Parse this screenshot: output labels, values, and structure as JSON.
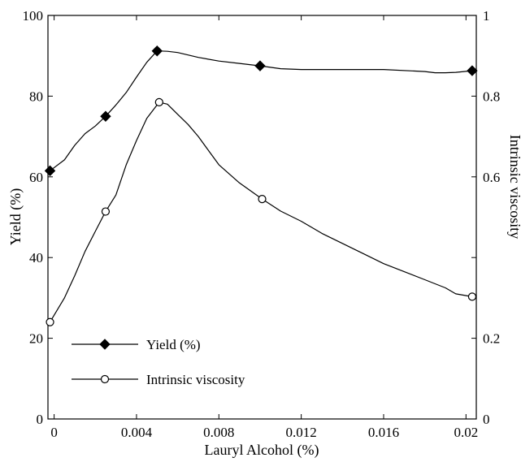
{
  "chart_data": {
    "type": "line",
    "xlabel": "Lauryl Alcohol (%)",
    "ylabel": "Yield (%)",
    "y2label": "Intrinsic viscosity",
    "xlim": [
      -0.0003,
      0.0205
    ],
    "ylim": [
      0,
      100
    ],
    "y2lim": [
      0,
      1
    ],
    "x_ticks": [
      0,
      0.004,
      0.008,
      0.012,
      0.016,
      0.02
    ],
    "x_tick_labels": [
      "0",
      "0.004",
      "0.008",
      "0.012",
      "0.016",
      "0.02"
    ],
    "y_ticks": [
      0,
      20,
      40,
      60,
      80,
      100
    ],
    "y_tick_labels": [
      "0",
      "20",
      "40",
      "60",
      "80",
      "100"
    ],
    "y2_ticks": [
      0,
      0.2,
      0.4,
      0.6,
      0.8,
      1
    ],
    "y2_tick_labels": [
      "0",
      "0.2",
      "",
      "0.6",
      "0.8",
      "1"
    ],
    "grid": false,
    "legend_position": "bottom-left",
    "series": [
      {
        "name": "Yield (%)",
        "axis": "left",
        "marker": "filled-diamond",
        "color": "#000000",
        "x": [
          -0.0002,
          0.0025,
          0.005,
          0.01,
          0.0203
        ],
        "y": [
          61.5,
          75,
          91.2,
          87.5,
          86.3
        ],
        "curve_x": [
          -0.0002,
          0.0005,
          0.001,
          0.0015,
          0.002,
          0.0025,
          0.003,
          0.0035,
          0.004,
          0.0045,
          0.005,
          0.0055,
          0.006,
          0.007,
          0.008,
          0.009,
          0.01,
          0.011,
          0.012,
          0.014,
          0.016,
          0.018,
          0.0185,
          0.019,
          0.0195,
          0.0203
        ],
        "curve_y": [
          61.5,
          64.2,
          67.8,
          70.7,
          72.6,
          75,
          77.8,
          80.9,
          84.7,
          88.4,
          91.2,
          91.1,
          90.8,
          89.6,
          88.7,
          88.1,
          87.5,
          86.8,
          86.6,
          86.6,
          86.6,
          86.1,
          85.8,
          85.8,
          85.9,
          86.3
        ]
      },
      {
        "name": "Intrinsic viscosity",
        "axis": "right",
        "marker": "open-circle",
        "color": "#000000",
        "x": [
          -0.0002,
          0.0025,
          0.0051,
          0.0101,
          0.0203
        ],
        "y": [
          0.24,
          0.514,
          0.785,
          0.545,
          0.303
        ],
        "curve_x": [
          -0.0002,
          0.0005,
          0.001,
          0.0015,
          0.002,
          0.0025,
          0.003,
          0.0035,
          0.004,
          0.0045,
          0.0051,
          0.0055,
          0.006,
          0.0065,
          0.007,
          0.0075,
          0.008,
          0.009,
          0.0101,
          0.011,
          0.012,
          0.013,
          0.014,
          0.015,
          0.016,
          0.017,
          0.018,
          0.0185,
          0.019,
          0.0195,
          0.0203
        ],
        "curve_y": [
          0.24,
          0.3,
          0.355,
          0.415,
          0.465,
          0.514,
          0.555,
          0.63,
          0.69,
          0.745,
          0.785,
          0.78,
          0.755,
          0.73,
          0.7,
          0.665,
          0.63,
          0.585,
          0.545,
          0.515,
          0.49,
          0.46,
          0.435,
          0.41,
          0.385,
          0.365,
          0.345,
          0.335,
          0.325,
          0.31,
          0.303
        ]
      }
    ]
  }
}
